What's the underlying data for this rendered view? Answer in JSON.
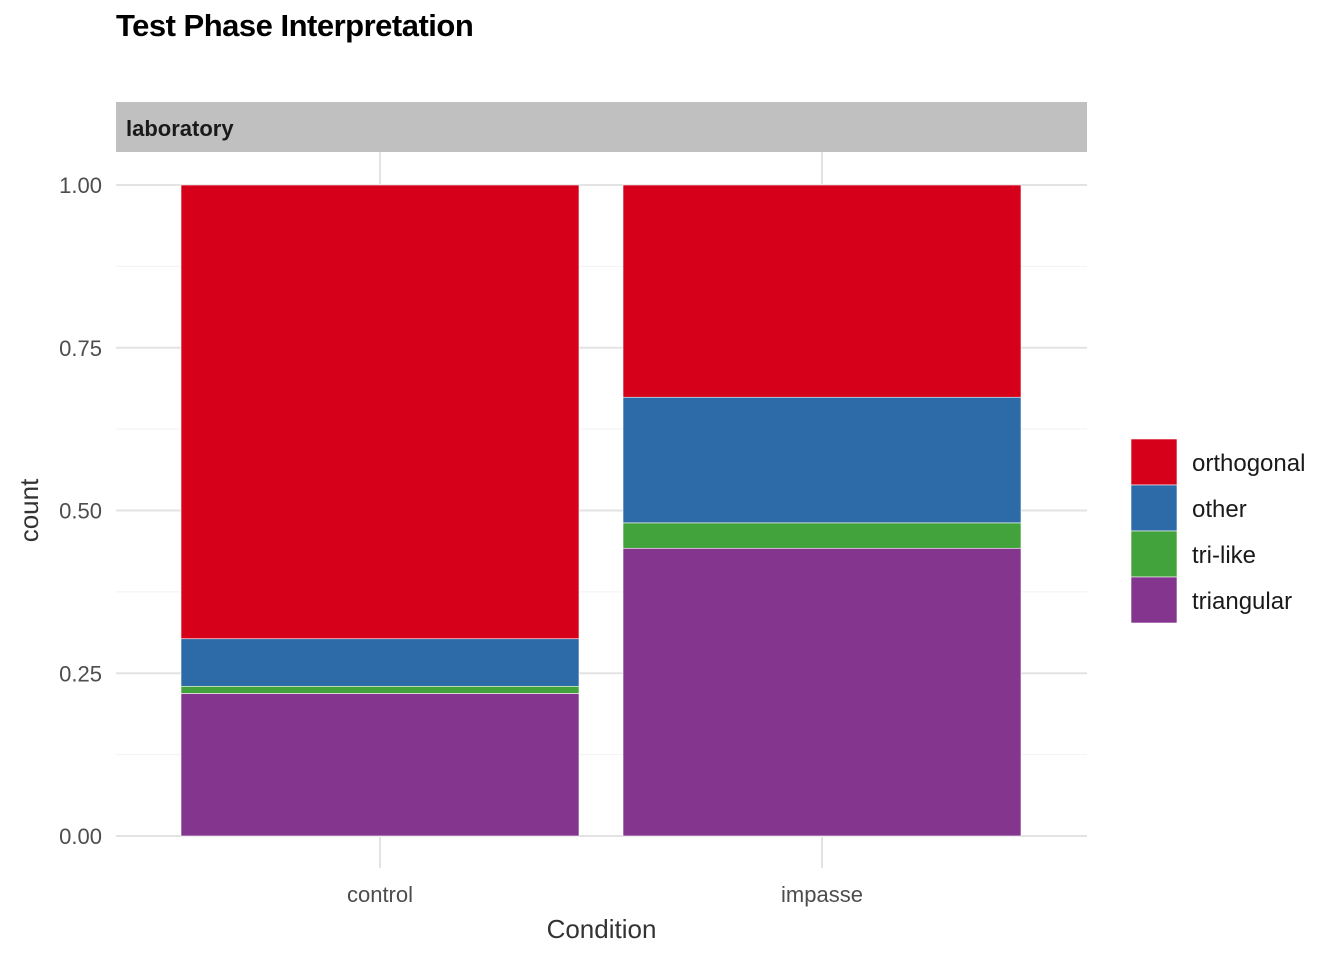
{
  "chart_data": {
    "type": "bar",
    "stacked": "fill",
    "title": "Test Phase Interpretation",
    "facet": "laboratory",
    "xlabel": "Condition",
    "ylabel": "count",
    "categories": [
      "control",
      "impasse"
    ],
    "ylim": [
      0,
      1
    ],
    "yticks": [
      "0.00",
      "0.25",
      "0.50",
      "0.75",
      "1.00"
    ],
    "grid": true,
    "legend_position": "right",
    "series": [
      {
        "name": "triangular",
        "color": "#84368F",
        "values": [
          0.219,
          0.442
        ]
      },
      {
        "name": "tri-like",
        "color": "#42A33C",
        "values": [
          0.011,
          0.039
        ]
      },
      {
        "name": "other",
        "color": "#2C6AA8",
        "values": [
          0.073,
          0.193
        ]
      },
      {
        "name": "orthogonal",
        "color": "#D7001A",
        "values": [
          0.697,
          0.326
        ]
      }
    ],
    "legend_order": [
      "orthogonal",
      "other",
      "tri-like",
      "triangular"
    ]
  }
}
